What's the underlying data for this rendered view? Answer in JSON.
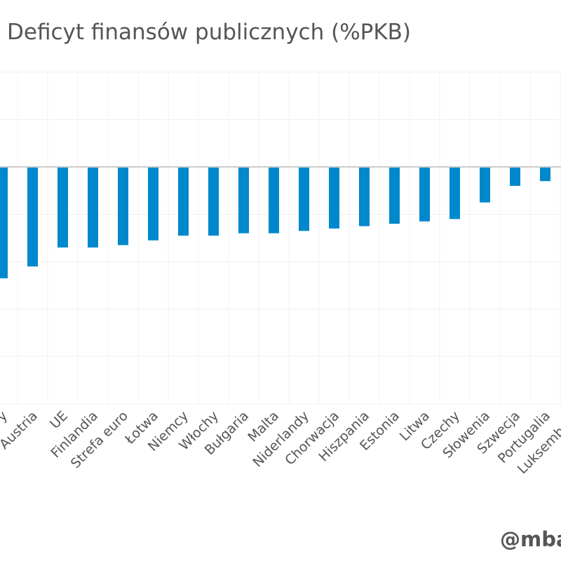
{
  "chart_data": {
    "type": "bar",
    "title": "Deficyt finansów publicznych (%PKB)",
    "xlabel": "",
    "ylabel": "",
    "ylim": [
      -10,
      4
    ],
    "grid": true,
    "categories": [
      "Węgry",
      "Austria",
      "UE",
      "Finlandia",
      "Strefa euro",
      "Łotwa",
      "Niemcy",
      "Włochy",
      "Bułgaria",
      "Malta",
      "Niderlandy",
      "Chorwacja",
      "Hiszpania",
      "Estonia",
      "Litwa",
      "Czechy",
      "Słowenia",
      "Szwecja",
      "Portugalia",
      "Luksemburg"
    ],
    "values": [
      -4.7,
      -4.2,
      -3.4,
      -3.4,
      -3.3,
      -3.1,
      -2.9,
      -2.9,
      -2.8,
      -2.8,
      -2.7,
      -2.6,
      -2.5,
      -2.4,
      -2.3,
      -2.2,
      -1.5,
      -0.8,
      -0.6,
      null
    ],
    "bar_color": "#0088cc"
  },
  "credit": "@mba"
}
